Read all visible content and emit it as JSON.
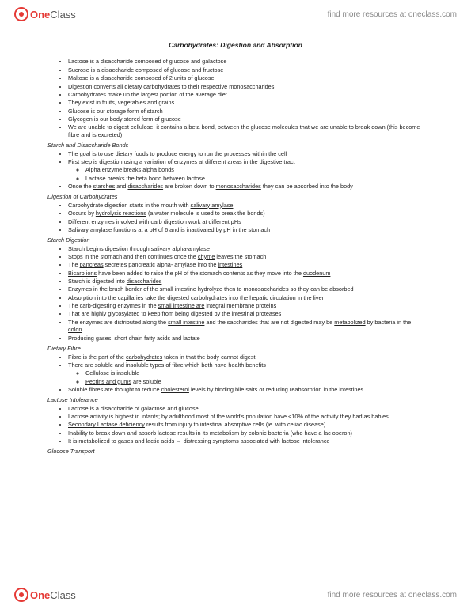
{
  "brand": {
    "one": "One",
    "class": "Class"
  },
  "header_link": "find more resources at oneclass.com",
  "footer_link": "find more resources at oneclass.com",
  "title": "Carbohydrates: Digestion and Absorption",
  "sections": [
    {
      "heading": null,
      "items": [
        {
          "t": "Lactose is a disaccharide composed of glucose and galactose"
        },
        {
          "t": "Sucrose is a disaccharide composed of glucose and fructose"
        },
        {
          "t": "Maltose is a disaccharide composed of 2 units of glucose"
        },
        {
          "t": "Digestion converts all dietary carbohydrates to their respective monosaccharides"
        },
        {
          "t": "Carbohydrates make up the largest portion of the average diet"
        },
        {
          "t": "They exist in fruits, vegetables and grains"
        },
        {
          "t": "Glucose is our storage form of starch"
        },
        {
          "t": "Glycogen is our body stored form of glucose"
        },
        {
          "t": "We are unable to digest cellulose, it contains a beta bond, between the glucose molecules that we are unable to break down (this become fibre and is excreted)"
        }
      ]
    },
    {
      "heading": "Starch and Disaccharide Bonds",
      "items": [
        {
          "t": "The goal is to use dietary foods to produce energy to run the processes within the cell"
        },
        {
          "t": "First step is digestion using a variation of enzymes at different areas in the digestive tract",
          "children": [
            {
              "t": "Alpha enzyme breaks alpha bonds"
            },
            {
              "t": "Lactase breaks the beta bond between lactose"
            }
          ]
        },
        {
          "html": "Once the <span class='u'>starches</span> and <span class='u'>disaccharides</span> are broken down to <span class='u'>monosaccharides</span> they can be absorbed into the body"
        }
      ]
    },
    {
      "heading": "Digestion of Carbohydrates",
      "items": [
        {
          "html": "Carbohydrate digestion starts in the mouth with <span class='u'>salivary amylase</span>"
        },
        {
          "html": "Occurs by <span class='u'>hydrolysis reactions</span> (a water molecule is used to break the bonds)"
        },
        {
          "t": "Different enzymes involved with carb digestion work at different pHs"
        },
        {
          "t": "Salivary amylase functions at a pH of 6 and is inactivated by pH in the stomach"
        }
      ]
    },
    {
      "heading": "Starch Digestion",
      "items": [
        {
          "t": "Starch begins digestion through salivary alpha-amylase"
        },
        {
          "html": "Stops in the stomach and then continues once the <span class='u'>chyme</span> leaves the stomach"
        },
        {
          "html": "The <span class='u'>pancreas</span> secretes pancreatic alpha- amylase into the <span class='u'>intestines</span>"
        },
        {
          "html": "<span class='u'>Bicarb ions</span> have been added to raise the pH of the stomach contents as they move into the <span class='u'>duodenum</span>"
        },
        {
          "html": "Starch is digested into <span class='u'>disaccharides</span>"
        },
        {
          "t": "Enzymes in the brush border of the small intestine hydrolyze then to monosaccharides so they can be absorbed"
        },
        {
          "html": "Absorption into the <span class='u'>capillaries</span> take the digested carbohydrates into the <span class='u'>hepatic circulation</span> in the <span class='u'>liver</span>"
        },
        {
          "html": "The carb-digesting enzymes in the <span class='u'>small intestine are</span> integral membrane proteins"
        },
        {
          "t": "That are highly glycosylated to keep from being digested by the intestinal proteases"
        },
        {
          "html": "The enzymes are distributed along the <span class='u'>small intestine</span> and the saccharides that are not digested may be <span class='u'>metabolized</span> by bacteria in the <span class='u'>colon</span>"
        },
        {
          "t": "Producing gases, short chain fatty acids and lactate"
        }
      ]
    },
    {
      "heading": "Dietary Fibre",
      "items": [
        {
          "html": "Fibre is the part of the <span class='u'>carbohydrates</span> taken in that the body cannot digest"
        },
        {
          "t": "There are soluble and insoluble types of fibre which both have health benefits",
          "children": [
            {
              "html": "<span class='u'>Cellulose</span> is insoluble"
            },
            {
              "html": "<span class='u'>Pectins and gums</span> are soluble"
            }
          ]
        },
        {
          "html": "Soluble fibres are thought to reduce <span class='u'>cholesterol</span> levels by binding bile salts or reducing reabsorption in the intestines"
        }
      ]
    },
    {
      "heading": "Lactose Intolerance",
      "items": [
        {
          "t": "Lactose is a disaccharide of galactose and glucose"
        },
        {
          "t": "Lactose activity is highest in infants; by adulthood most of the world's population have <10% of the activity they had as babies"
        },
        {
          "html": "<span class='u'>Secondary Lactase deficiency</span> results from injury to intestinal absorptive cells (ie. with celiac disease)"
        },
        {
          "t": "Inability to break down and absorb lactose results in its metabolism by colonic bacteria (who have a lac operon)"
        },
        {
          "t": "It is metabolized to gases and lactic acids → distressing symptoms associated with lactose intolerance"
        }
      ]
    },
    {
      "heading": "Glucose Transport",
      "items": []
    }
  ]
}
